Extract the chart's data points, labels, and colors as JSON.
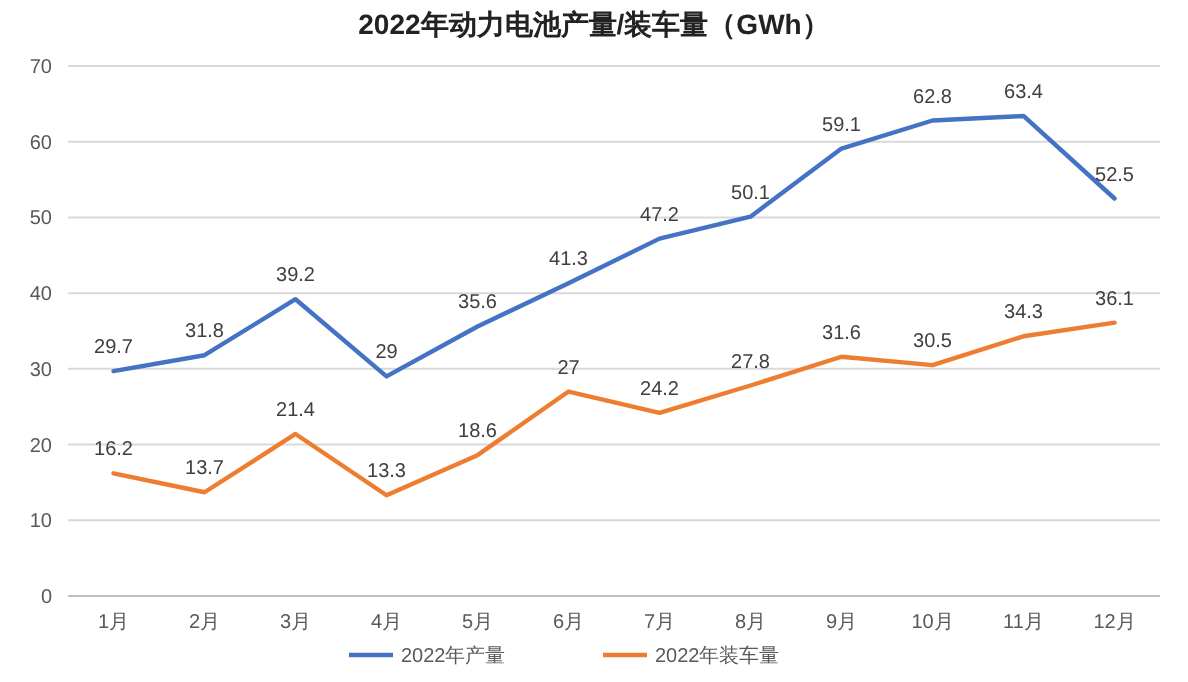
{
  "chart_data": {
    "type": "line",
    "title": "2022年动力电池产量/装车量（GWh）",
    "categories": [
      "1月",
      "2月",
      "3月",
      "4月",
      "5月",
      "6月",
      "7月",
      "8月",
      "9月",
      "10月",
      "11月",
      "12月"
    ],
    "series": [
      {
        "name": "2022年产量",
        "color": "#4472c4",
        "values": [
          29.7,
          31.8,
          39.2,
          29,
          35.6,
          41.3,
          47.2,
          50.1,
          59.1,
          62.8,
          63.4,
          52.5
        ]
      },
      {
        "name": "2022年装车量",
        "color": "#ed7d31",
        "values": [
          16.2,
          13.7,
          21.4,
          13.3,
          18.6,
          27,
          24.2,
          27.8,
          31.6,
          30.5,
          34.3,
          36.1
        ]
      }
    ],
    "ylim": [
      0,
      70
    ],
    "yticks": [
      0,
      10,
      20,
      30,
      40,
      50,
      60,
      70
    ],
    "grid": "y",
    "legend": "bottom",
    "data_labels": true,
    "marker": "none",
    "line_style": "solid"
  }
}
